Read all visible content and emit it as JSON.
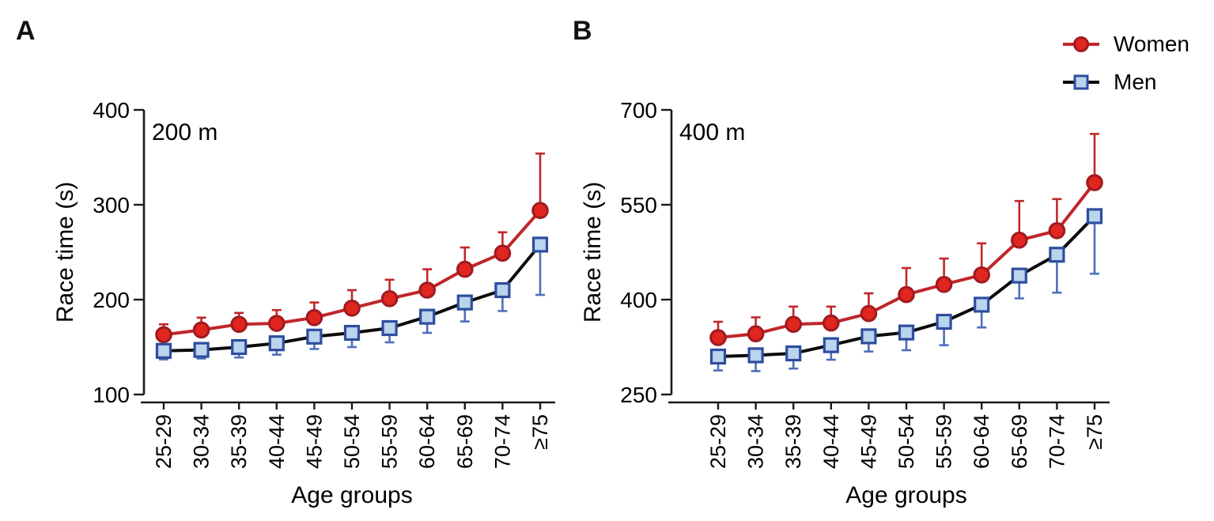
{
  "colors": {
    "women_line": "#c0262b",
    "women_marker_fill": "#e0261f",
    "women_marker_stroke": "#9e1b20",
    "women_error": "#c0262b",
    "men_line": "#0b0b0b",
    "men_marker_fill": "#bad4ee",
    "men_marker_stroke": "#2e4d9f",
    "men_error": "#4d6fb8",
    "axis": "#1a1a1a",
    "text": "#000000"
  },
  "legend": [
    {
      "label": "Women",
      "marker": "circle",
      "color_role": "women"
    },
    {
      "label": "Men",
      "marker": "square",
      "color_role": "men"
    }
  ],
  "chart_data": [
    {
      "panel": "A",
      "letter": "A",
      "type": "line",
      "title": "200 m",
      "xlabel": "Age groups",
      "ylabel": "Race time (s)",
      "ylim": [
        100,
        400
      ],
      "yticks": [
        400,
        300,
        200,
        100
      ],
      "grid": false,
      "legend_position": "top-right",
      "categories": [
        "25-29",
        "30-34",
        "35-39",
        "40-44",
        "45-49",
        "50-54",
        "55-59",
        "60-64",
        "65-69",
        "70-74",
        "≥75"
      ],
      "series": [
        {
          "name": "Women",
          "marker": "circle",
          "color_role": "women",
          "error_direction": "up",
          "values": [
            163,
            168,
            174,
            175,
            181,
            191,
            201,
            210,
            232,
            249,
            294
          ],
          "errors": [
            11,
            13,
            12,
            14,
            16,
            19,
            20,
            22,
            23,
            22,
            60
          ]
        },
        {
          "name": "Men",
          "marker": "square",
          "color_role": "men",
          "error_direction": "down",
          "values": [
            146,
            147,
            150,
            154,
            161,
            165,
            170,
            182,
            197,
            210,
            258
          ],
          "errors": [
            9,
            9,
            11,
            12,
            13,
            15,
            15,
            17,
            20,
            22,
            53
          ]
        }
      ]
    },
    {
      "panel": "B",
      "letter": "B",
      "type": "line",
      "title": "400 m",
      "xlabel": "Age groups",
      "ylabel": "Race time (s)",
      "ylim": [
        250,
        700
      ],
      "yticks": [
        700,
        550,
        400,
        250
      ],
      "grid": false,
      "legend_position": "top-right",
      "categories": [
        "25-29",
        "30-34",
        "35-39",
        "40-44",
        "45-49",
        "50-54",
        "55-59",
        "60-64",
        "65-69",
        "70-74",
        "≥75"
      ],
      "series": [
        {
          "name": "Women",
          "marker": "circle",
          "color_role": "women",
          "error_direction": "up",
          "values": [
            340,
            346,
            361,
            363,
            378,
            408,
            424,
            439,
            494,
            509,
            585
          ],
          "errors": [
            25,
            26,
            28,
            26,
            32,
            42,
            41,
            50,
            62,
            50,
            77
          ]
        },
        {
          "name": "Men",
          "marker": "square",
          "color_role": "men",
          "error_direction": "down",
          "values": [
            310,
            312,
            315,
            328,
            342,
            348,
            365,
            392,
            438,
            471,
            532
          ],
          "errors": [
            22,
            25,
            24,
            23,
            24,
            28,
            37,
            36,
            36,
            60,
            91
          ]
        }
      ]
    }
  ]
}
